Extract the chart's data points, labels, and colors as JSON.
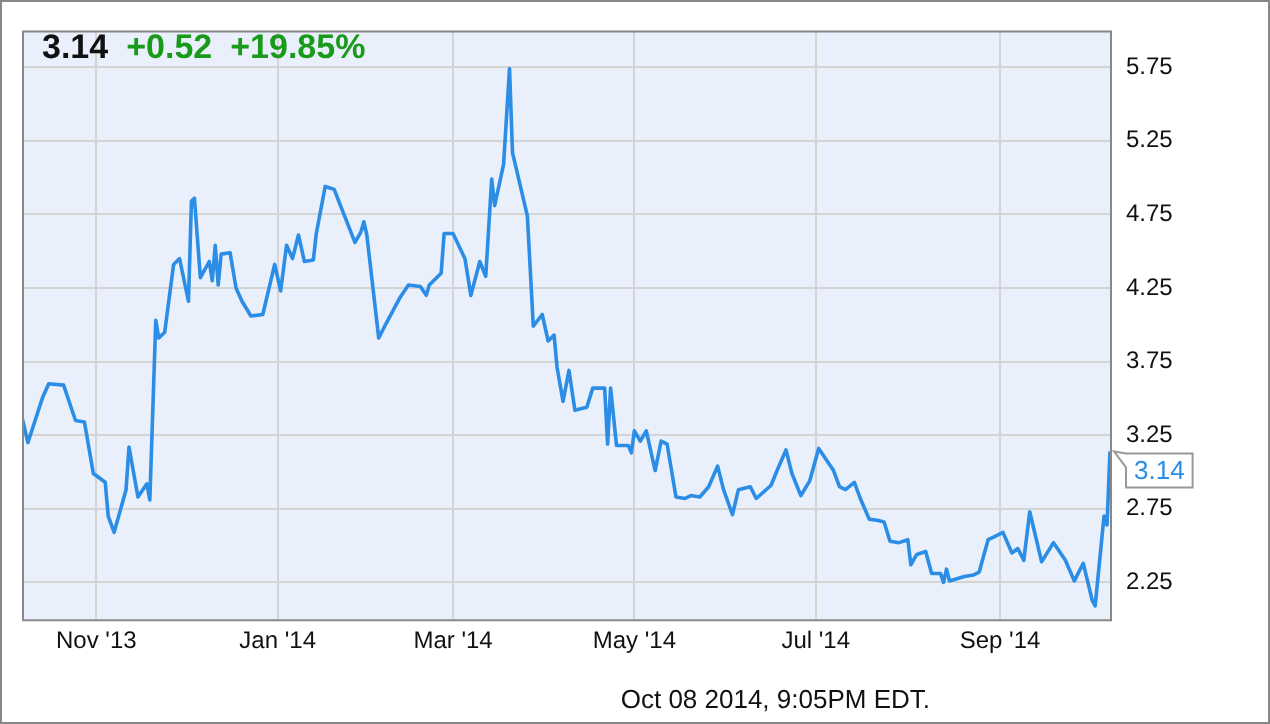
{
  "chart_data": {
    "type": "line",
    "title": "3.14 +0.52 +19.85%",
    "xlim": [
      "2013-10-07",
      "2014-10-08"
    ],
    "xticks": [
      {
        "value": "2013-11-01",
        "label": "Nov '13"
      },
      {
        "value": "2014-01-01",
        "label": "Jan '14"
      },
      {
        "value": "2014-03-01",
        "label": "Mar '14"
      },
      {
        "value": "2014-05-01",
        "label": "May '14"
      },
      {
        "value": "2014-07-01",
        "label": "Jul '14"
      },
      {
        "value": "2014-09-01",
        "label": "Sep '14"
      }
    ],
    "ylim": [
      2.0,
      6.0
    ],
    "yticks": [
      2.25,
      2.75,
      3.25,
      3.75,
      4.25,
      4.75,
      5.25,
      5.75
    ],
    "grid": true,
    "legend": false,
    "marker": "none",
    "line_style": "solid",
    "annotations": [
      {
        "text": "3.14",
        "x": "2014-10-08",
        "y": 3.14
      },
      "Oct 08 2014, 9:05PM EDT."
    ],
    "series": [
      {
        "color": "#2b8de6",
        "x": [
          "2013-10-07",
          "2013-10-09",
          "2013-10-14",
          "2013-10-16",
          "2013-10-21",
          "2013-10-25",
          "2013-10-28",
          "2013-10-31",
          "2013-11-04",
          "2013-11-05",
          "2013-11-07",
          "2013-11-11",
          "2013-11-12",
          "2013-11-15",
          "2013-11-18",
          "2013-11-19",
          "2013-11-21",
          "2013-11-22",
          "2013-11-24",
          "2013-11-27",
          "2013-11-29",
          "2013-12-02",
          "2013-12-03",
          "2013-12-04",
          "2013-12-06",
          "2013-12-09",
          "2013-12-10",
          "2013-12-11",
          "2013-12-12",
          "2013-12-13",
          "2013-12-16",
          "2013-12-18",
          "2013-12-20",
          "2013-12-23",
          "2013-12-27",
          "2013-12-31",
          "2014-01-02",
          "2014-01-04",
          "2014-01-06",
          "2014-01-08",
          "2014-01-10",
          "2014-01-13",
          "2014-01-14",
          "2014-01-17",
          "2014-01-20",
          "2014-01-27",
          "2014-01-29",
          "2014-01-30",
          "2014-01-31",
          "2014-02-04",
          "2014-02-06",
          "2014-02-11",
          "2014-02-14",
          "2014-02-18",
          "2014-02-20",
          "2014-02-21",
          "2014-02-25",
          "2014-02-26",
          "2014-03-01",
          "2014-03-05",
          "2014-03-07",
          "2014-03-10",
          "2014-03-12",
          "2014-03-14",
          "2014-03-15",
          "2014-03-18",
          "2014-03-20",
          "2014-03-21",
          "2014-03-26",
          "2014-03-28",
          "2014-03-31",
          "2014-04-02",
          "2014-04-04",
          "2014-04-05",
          "2014-04-07",
          "2014-04-09",
          "2014-04-11",
          "2014-04-15",
          "2014-04-17",
          "2014-04-21",
          "2014-04-22",
          "2014-04-23",
          "2014-04-25",
          "2014-04-29",
          "2014-04-30",
          "2014-05-01",
          "2014-05-03",
          "2014-05-05",
          "2014-05-08",
          "2014-05-10",
          "2014-05-12",
          "2014-05-15",
          "2014-05-18",
          "2014-05-20",
          "2014-05-23",
          "2014-05-26",
          "2014-05-29",
          "2014-05-31",
          "2014-06-03",
          "2014-06-05",
          "2014-06-09",
          "2014-06-11",
          "2014-06-16",
          "2014-06-18",
          "2014-06-21",
          "2014-06-23",
          "2014-06-26",
          "2014-06-29",
          "2014-07-02",
          "2014-07-07",
          "2014-07-09",
          "2014-07-11",
          "2014-07-14",
          "2014-07-16",
          "2014-07-19",
          "2014-07-22",
          "2014-07-24",
          "2014-07-26",
          "2014-07-29",
          "2014-08-01",
          "2014-08-02",
          "2014-08-04",
          "2014-08-07",
          "2014-08-09",
          "2014-08-12",
          "2014-08-13",
          "2014-08-14",
          "2014-08-15",
          "2014-08-20",
          "2014-08-23",
          "2014-08-25",
          "2014-08-28",
          "2014-08-30",
          "2014-09-02",
          "2014-09-05",
          "2014-09-07",
          "2014-09-09",
          "2014-09-11",
          "2014-09-13",
          "2014-09-15",
          "2014-09-19",
          "2014-09-23",
          "2014-09-26",
          "2014-09-29",
          "2014-10-02",
          "2014-10-03",
          "2014-10-06",
          "2014-10-07",
          "2014-10-08"
        ],
        "values": [
          3.37,
          3.2,
          3.51,
          3.6,
          3.59,
          3.35,
          3.34,
          2.99,
          2.93,
          2.7,
          2.59,
          2.88,
          3.17,
          2.83,
          2.92,
          2.81,
          4.03,
          3.91,
          3.95,
          4.41,
          4.45,
          4.16,
          4.84,
          4.86,
          4.32,
          4.43,
          4.3,
          4.54,
          4.27,
          4.48,
          4.49,
          4.25,
          4.16,
          4.06,
          4.07,
          4.41,
          4.23,
          4.54,
          4.45,
          4.61,
          4.43,
          4.44,
          4.62,
          4.94,
          4.92,
          4.56,
          4.63,
          4.7,
          4.61,
          3.91,
          3.99,
          4.18,
          4.27,
          4.26,
          4.2,
          4.27,
          4.35,
          4.62,
          4.62,
          4.45,
          4.2,
          4.43,
          4.33,
          4.99,
          4.81,
          5.09,
          5.74,
          5.17,
          4.74,
          3.99,
          4.07,
          3.89,
          3.93,
          3.71,
          3.48,
          3.69,
          3.42,
          3.44,
          3.57,
          3.57,
          3.19,
          3.57,
          3.18,
          3.18,
          3.13,
          3.28,
          3.21,
          3.28,
          3.01,
          3.21,
          3.19,
          2.83,
          2.82,
          2.84,
          2.83,
          2.9,
          3.04,
          2.88,
          2.71,
          2.88,
          2.9,
          2.82,
          2.91,
          3.01,
          3.15,
          2.99,
          2.84,
          2.94,
          3.16,
          3.01,
          2.9,
          2.88,
          2.93,
          2.82,
          2.68,
          2.67,
          2.66,
          2.53,
          2.52,
          2.54,
          2.37,
          2.44,
          2.46,
          2.31,
          2.31,
          2.25,
          2.34,
          2.26,
          2.29,
          2.3,
          2.32,
          2.54,
          2.56,
          2.59,
          2.45,
          2.48,
          2.4,
          2.73,
          2.56,
          2.39,
          2.52,
          2.4,
          2.26,
          2.38,
          2.13,
          2.09,
          2.7,
          2.64,
          3.14
        ]
      }
    ]
  }
}
